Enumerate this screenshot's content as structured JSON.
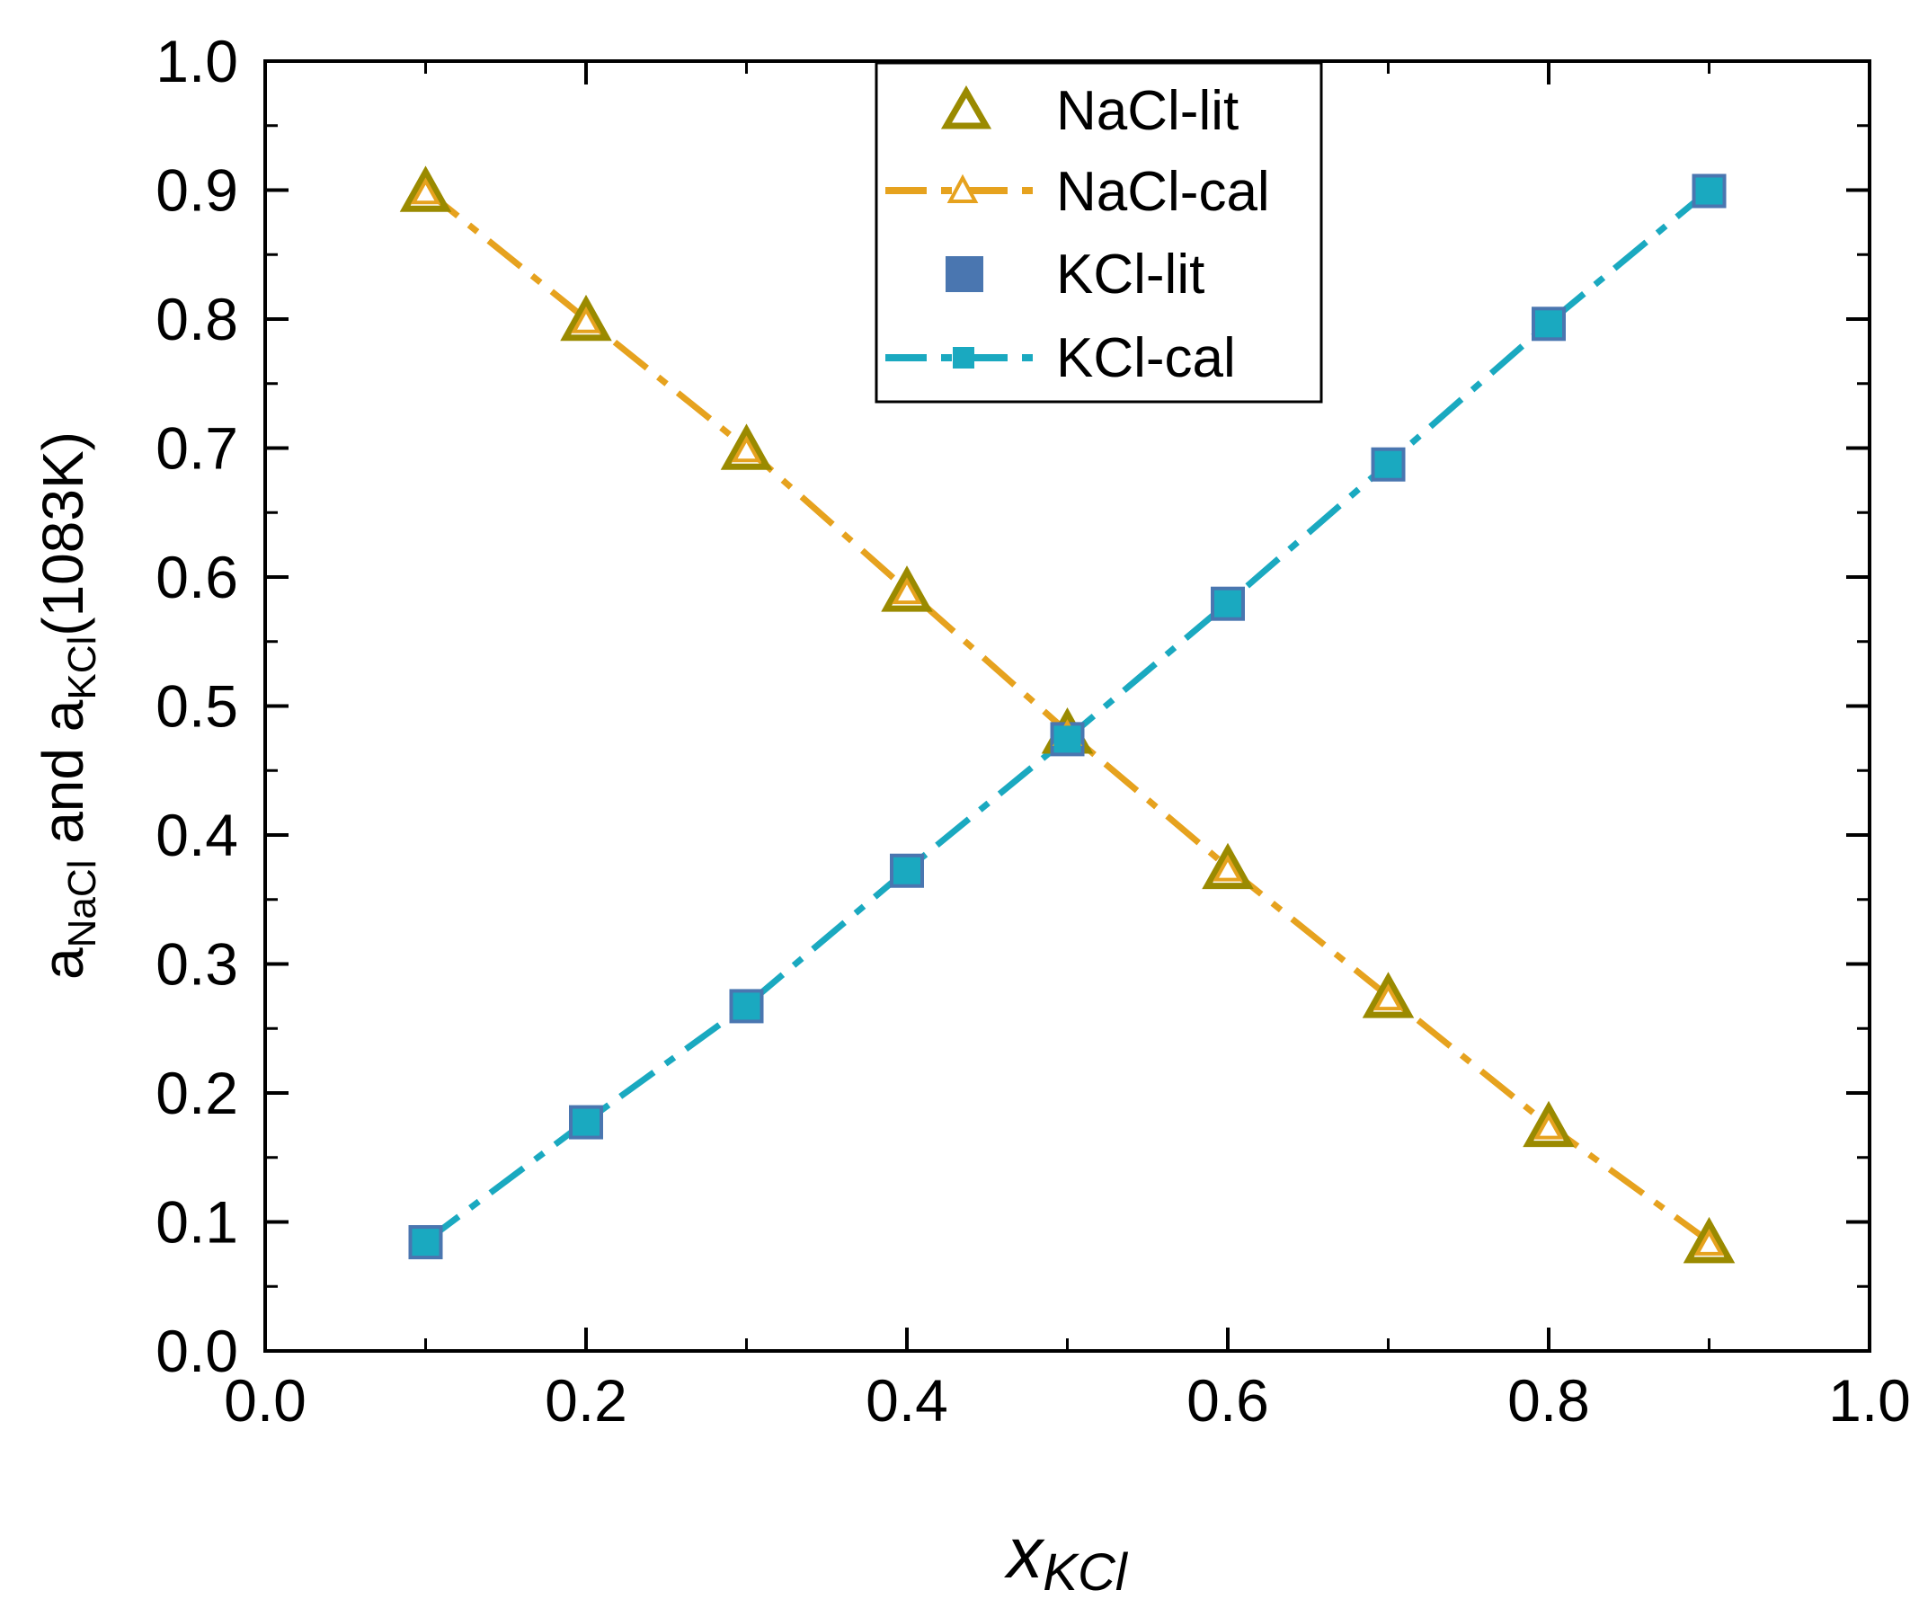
{
  "chart_data": {
    "type": "line",
    "title": "",
    "xlabel": {
      "main": "x",
      "sub": "KCl"
    },
    "ylabel": {
      "a1": "a",
      "sub1": "NaCl",
      "mid": " and a",
      "sub2": "KCl",
      "tail": "(1083K)"
    },
    "xlim": [
      0.0,
      1.0
    ],
    "ylim": [
      0.0,
      1.0
    ],
    "x_ticks": [
      "0.0",
      "0.2",
      "0.4",
      "0.6",
      "0.8",
      "1.0"
    ],
    "y_ticks": [
      "0.0",
      "0.1",
      "0.2",
      "0.3",
      "0.4",
      "0.5",
      "0.6",
      "0.7",
      "0.8",
      "0.9",
      "1.0"
    ],
    "grid": false,
    "legend_position": "top-center",
    "x": [
      0.1,
      0.2,
      0.3,
      0.4,
      0.5,
      0.6,
      0.7,
      0.8,
      0.9
    ],
    "series": [
      {
        "name": "NaCl-lit",
        "style": "marker",
        "marker": "triangle-open",
        "color": "#9a8a00",
        "values": [
          0.9,
          0.8,
          0.7,
          0.59,
          0.48,
          0.375,
          0.275,
          0.175,
          0.085
        ]
      },
      {
        "name": "NaCl-cal",
        "style": "dash-dot-line",
        "marker": "triangle-open-small",
        "color": "#e6a21e",
        "values": [
          0.9,
          0.8,
          0.7,
          0.59,
          0.48,
          0.375,
          0.275,
          0.175,
          0.085
        ]
      },
      {
        "name": "KCl-lit",
        "style": "marker",
        "marker": "square",
        "color": "#4a76b0",
        "values": [
          0.085,
          0.178,
          0.268,
          0.373,
          0.475,
          0.58,
          0.688,
          0.797,
          0.9
        ]
      },
      {
        "name": "KCl-cal",
        "style": "dash-dot-line",
        "marker": "square-small",
        "color": "#1aa9c0",
        "values": [
          0.085,
          0.178,
          0.268,
          0.373,
          0.475,
          0.58,
          0.688,
          0.797,
          0.9
        ]
      }
    ]
  }
}
